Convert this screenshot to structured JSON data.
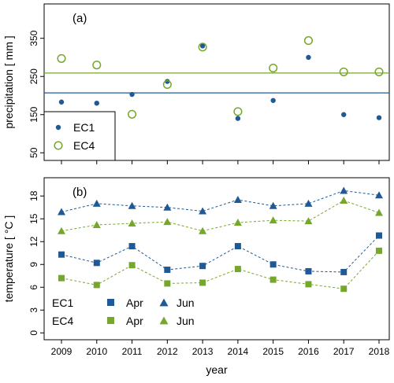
{
  "chart_data": [
    {
      "panel": "a",
      "panel_label": "(a)",
      "type": "scatter",
      "xlabel": "",
      "ylabel": "precipitation [ mm ]",
      "ylim": [
        30,
        440
      ],
      "yticks": [
        50,
        150,
        250,
        350
      ],
      "x": [
        2009,
        2010,
        2011,
        2012,
        2013,
        2014,
        2015,
        2016,
        2017,
        2018
      ],
      "series": [
        {
          "name": "EC1",
          "color": "#1f5a96",
          "marker": "filled-circle",
          "values": [
            183,
            180,
            203,
            237,
            330,
            140,
            187,
            300,
            150,
            142
          ],
          "reference_line": 207
        },
        {
          "name": "EC4",
          "color": "#76a72d",
          "marker": "open-circle",
          "values": [
            297,
            280,
            151,
            229,
            327,
            158,
            272,
            344,
            262,
            262
          ],
          "reference_line": 259
        }
      ],
      "legend": {
        "position": "bottom-left",
        "entries": [
          "EC1",
          "EC4"
        ]
      }
    },
    {
      "panel": "b",
      "panel_label": "(b)",
      "type": "line",
      "xlabel": "year",
      "ylabel": "temperature [ °C ]",
      "ylim": [
        -0.9,
        20.4
      ],
      "yticks": [
        0,
        3,
        6,
        9,
        12,
        15,
        18
      ],
      "x": [
        2009,
        2010,
        2011,
        2012,
        2013,
        2014,
        2015,
        2016,
        2017,
        2018
      ],
      "series": [
        {
          "name": "EC1 Jun",
          "color": "#1f5a96",
          "marker": "triangle",
          "values": [
            15.9,
            17.0,
            16.7,
            16.5,
            16.0,
            17.5,
            16.7,
            17.0,
            18.7,
            18.1
          ]
        },
        {
          "name": "EC4 Jun",
          "color": "#76a72d",
          "marker": "triangle",
          "values": [
            13.4,
            14.2,
            14.4,
            14.6,
            13.4,
            14.5,
            14.8,
            14.7,
            17.4,
            15.8
          ]
        },
        {
          "name": "EC1 Apr",
          "color": "#1f5a96",
          "marker": "square",
          "values": [
            10.3,
            9.2,
            11.4,
            8.3,
            8.8,
            11.4,
            9.0,
            8.1,
            8.0,
            12.8
          ]
        },
        {
          "name": "EC4 Apr",
          "color": "#76a72d",
          "marker": "square",
          "values": [
            7.2,
            6.3,
            8.9,
            6.5,
            6.6,
            8.4,
            7.0,
            6.4,
            5.8,
            10.8
          ]
        }
      ],
      "legend": {
        "position": "bottom-left",
        "rows": [
          {
            "label": "EC1",
            "color": "#1f5a96",
            "apr": "Apr",
            "jun": "Jun"
          },
          {
            "label": "EC4",
            "color": "#76a72d",
            "apr": "Apr",
            "jun": "Jun"
          }
        ]
      }
    }
  ]
}
